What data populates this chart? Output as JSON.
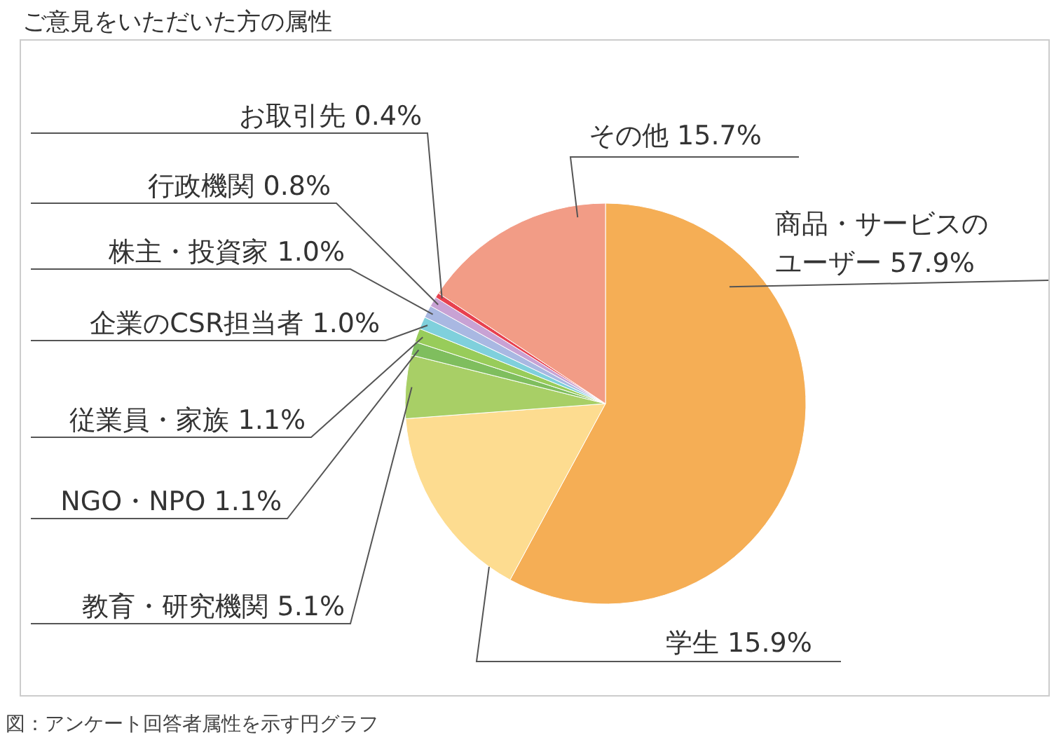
{
  "chart_data": {
    "type": "pie",
    "title": "ご意見をいただいた方の属性",
    "categories": [
      "商品・サービスのユーザー",
      "学生",
      "教育・研究機関",
      "NGO・NPO",
      "従業員・家族",
      "企業のCSR担当者",
      "株主・投資家",
      "行政機関",
      "お取引先",
      "その他"
    ],
    "values": [
      57.9,
      15.9,
      5.1,
      1.1,
      1.1,
      1.0,
      1.0,
      0.8,
      0.4,
      15.7
    ],
    "value_labels": [
      "57.9%",
      "15.9%",
      "5.1%",
      "1.1%",
      "1.1%",
      "1.0%",
      "1.0%",
      "0.8%",
      "0.4%",
      "15.7%"
    ],
    "colors": [
      "#f5ae55",
      "#fddc90",
      "#a8cf66",
      "#7fbe5e",
      "#98cc5a",
      "#7fd0dc",
      "#a9b8e2",
      "#c8a2d4",
      "#e8414f",
      "#f29c86"
    ],
    "annotations": [
      "図：アンケート回答者属性を示す円グラフ"
    ]
  }
}
